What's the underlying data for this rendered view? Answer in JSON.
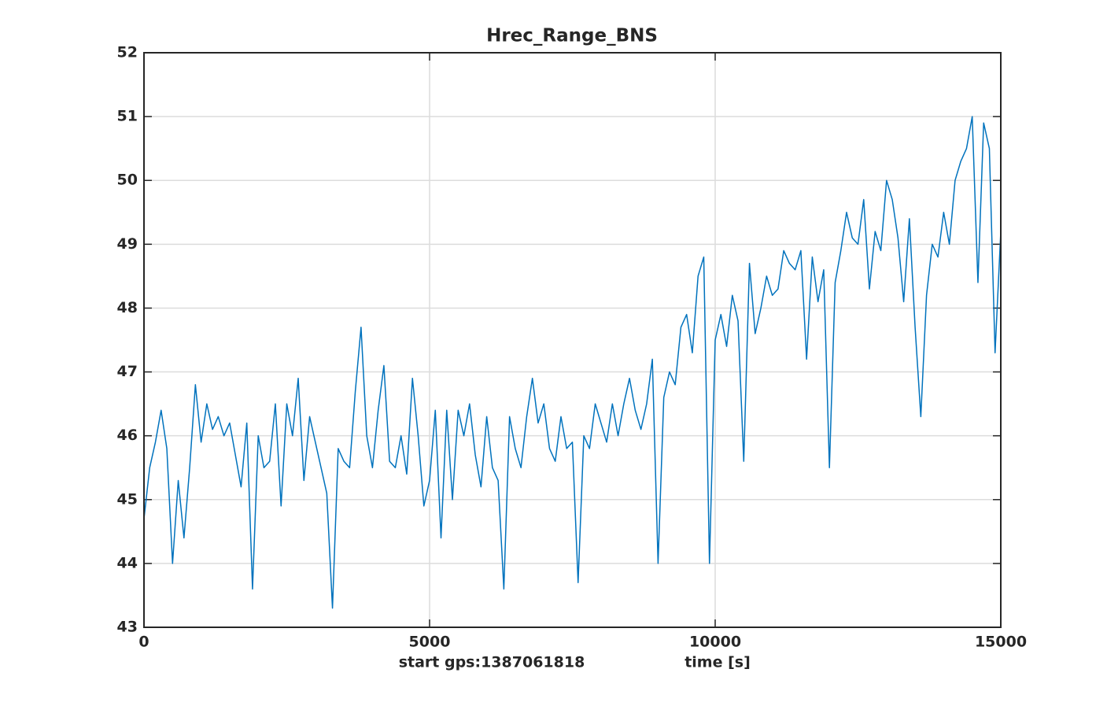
{
  "chart_data": {
    "type": "line",
    "title": "Hrec_Range_BNS",
    "xlabel": "time [s]",
    "annotation": "start gps:1387061818",
    "color": "#0072bd",
    "grid": true,
    "xlim": [
      0,
      15000
    ],
    "xticks": [
      0,
      5000,
      10000,
      15000
    ],
    "ylim": [
      43,
      52
    ],
    "yticks": [
      43,
      44,
      45,
      46,
      47,
      48,
      49,
      50,
      51,
      52
    ],
    "x": [
      0,
      100,
      200,
      300,
      400,
      500,
      600,
      700,
      800,
      900,
      1000,
      1100,
      1200,
      1300,
      1400,
      1500,
      1600,
      1700,
      1800,
      1900,
      2000,
      2100,
      2200,
      2300,
      2400,
      2500,
      2600,
      2700,
      2800,
      2900,
      3000,
      3100,
      3200,
      3300,
      3400,
      3500,
      3600,
      3700,
      3800,
      3900,
      4000,
      4100,
      4200,
      4300,
      4400,
      4500,
      4600,
      4700,
      4800,
      4900,
      5000,
      5100,
      5200,
      5300,
      5400,
      5500,
      5600,
      5700,
      5800,
      5900,
      6000,
      6100,
      6200,
      6300,
      6400,
      6500,
      6600,
      6700,
      6800,
      6900,
      7000,
      7100,
      7200,
      7300,
      7400,
      7500,
      7600,
      7700,
      7800,
      7900,
      8000,
      8100,
      8200,
      8300,
      8400,
      8500,
      8600,
      8700,
      8800,
      8900,
      9000,
      9100,
      9200,
      9300,
      9400,
      9500,
      9600,
      9700,
      9800,
      9900,
      10000,
      10100,
      10200,
      10300,
      10400,
      10500,
      10600,
      10700,
      10800,
      10900,
      11000,
      11100,
      11200,
      11300,
      11400,
      11500,
      11600,
      11700,
      11800,
      11900,
      12000,
      12100,
      12200,
      12300,
      12400,
      12500,
      12600,
      12700,
      12800,
      12900,
      13000,
      13100,
      13200,
      13300,
      13400,
      13500,
      13600,
      13700,
      13800,
      13900,
      14000,
      14100,
      14200,
      14300,
      14400,
      14500,
      14600,
      14700,
      14800,
      14900,
      15000
    ],
    "values": [
      44.7,
      45.5,
      45.9,
      46.4,
      45.8,
      44.0,
      45.3,
      44.4,
      45.5,
      46.8,
      45.9,
      46.5,
      46.1,
      46.3,
      46.0,
      46.2,
      45.7,
      45.2,
      46.2,
      43.6,
      46.0,
      45.5,
      45.6,
      46.5,
      44.9,
      46.5,
      46.0,
      46.9,
      45.3,
      46.3,
      45.9,
      45.5,
      45.1,
      43.3,
      45.8,
      45.6,
      45.5,
      46.7,
      47.7,
      46.0,
      45.5,
      46.4,
      47.1,
      45.6,
      45.5,
      46.0,
      45.4,
      46.9,
      46.0,
      44.9,
      45.3,
      46.4,
      44.4,
      46.4,
      45.0,
      46.4,
      46.0,
      46.5,
      45.7,
      45.2,
      46.3,
      45.5,
      45.3,
      43.6,
      46.3,
      45.8,
      45.5,
      46.3,
      46.9,
      46.2,
      46.5,
      45.8,
      45.6,
      46.3,
      45.8,
      45.9,
      43.7,
      46.0,
      45.8,
      46.5,
      46.2,
      45.9,
      46.5,
      46.0,
      46.5,
      46.9,
      46.4,
      46.1,
      46.5,
      47.2,
      44.0,
      46.6,
      47.0,
      46.8,
      47.7,
      47.9,
      47.3,
      48.5,
      48.8,
      44.0,
      47.5,
      47.9,
      47.4,
      48.2,
      47.8,
      45.6,
      48.7,
      47.6,
      48.0,
      48.5,
      48.2,
      48.3,
      48.9,
      48.7,
      48.6,
      48.9,
      47.2,
      48.8,
      48.1,
      48.6,
      45.5,
      48.4,
      48.9,
      49.5,
      49.1,
      49.0,
      49.7,
      48.3,
      49.2,
      48.9,
      50.0,
      49.7,
      49.1,
      48.1,
      49.4,
      47.7,
      46.3,
      48.2,
      49.0,
      48.8,
      49.5,
      49.0,
      50.0,
      50.3,
      50.5,
      51.0,
      48.4,
      50.9,
      50.5,
      47.3,
      49.2
    ]
  }
}
